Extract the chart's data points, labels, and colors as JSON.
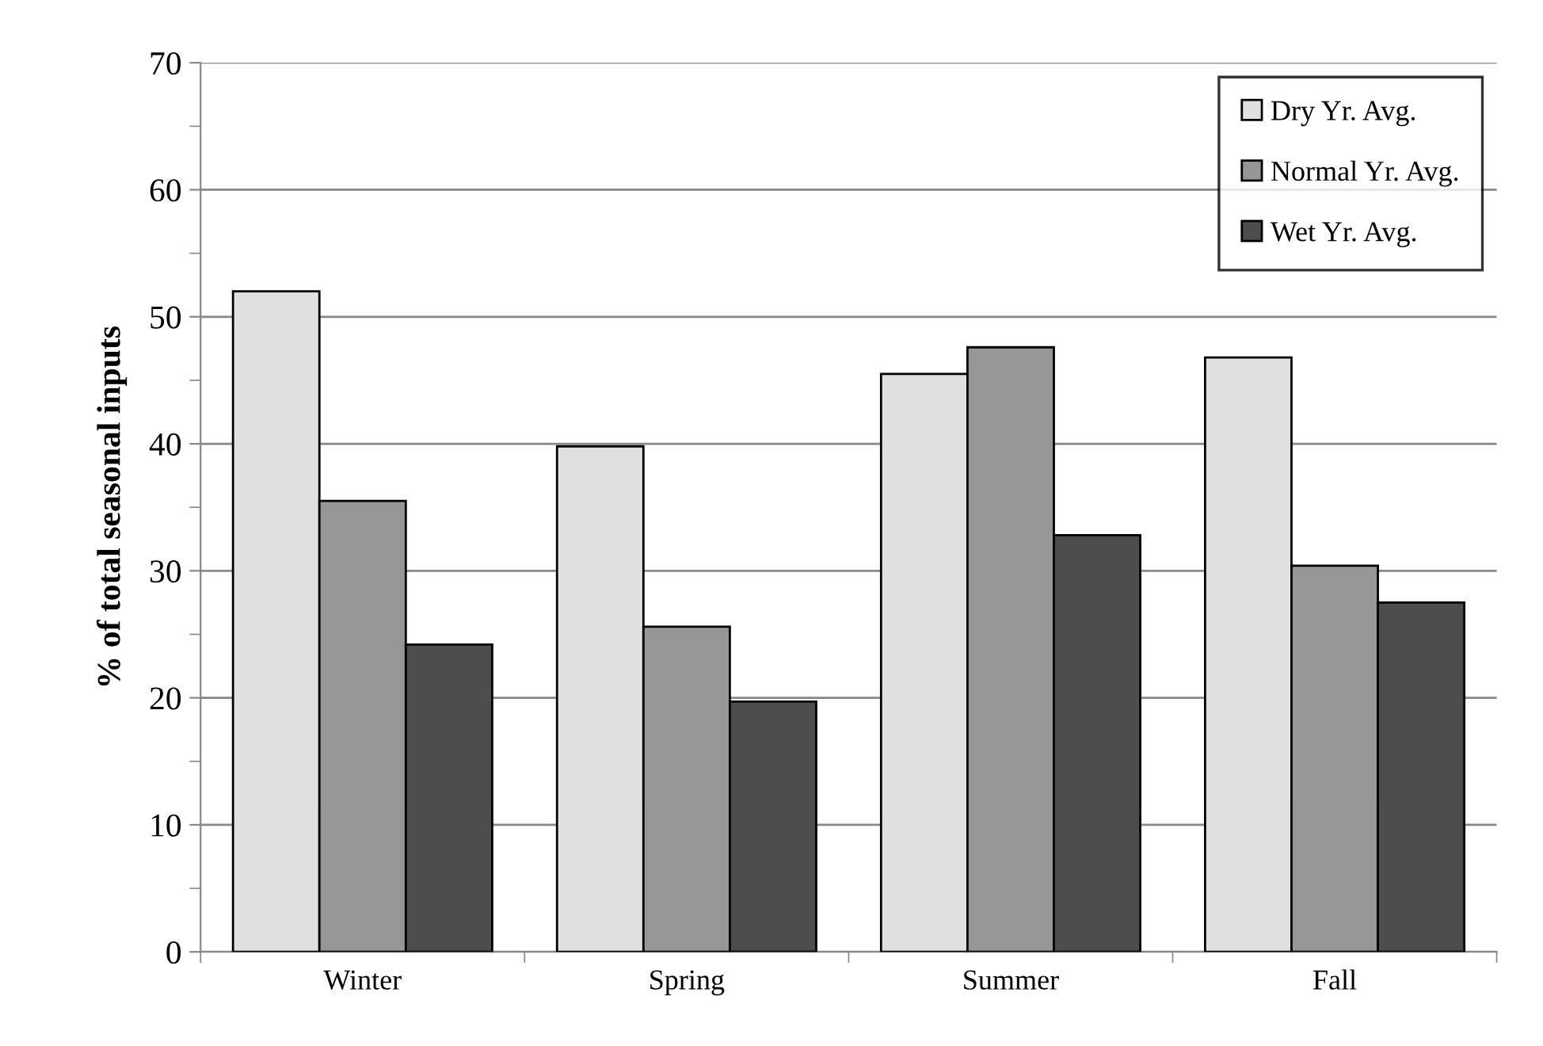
{
  "chart_data": {
    "type": "bar",
    "ylabel": "% of total seasonal inputs",
    "categories": [
      "Winter",
      "Spring",
      "Summer",
      "Fall"
    ],
    "series": [
      {
        "name": "Dry Yr. Avg.",
        "color": "#e0e0e0",
        "values": [
          52.0,
          39.8,
          45.5,
          46.8
        ]
      },
      {
        "name": "Normal Yr. Avg.",
        "color": "#969696",
        "values": [
          35.5,
          25.6,
          47.6,
          30.4
        ]
      },
      {
        "name": "Wet Yr. Avg.",
        "color": "#4d4d4d",
        "values": [
          24.2,
          19.7,
          32.8,
          27.5
        ]
      }
    ],
    "ylim": [
      0,
      70
    ],
    "yticks": [
      0,
      {
        "value": 5,
        "label": null
      },
      10,
      {
        "value": 15,
        "label": null
      },
      20,
      {
        "value": 25,
        "label": null
      },
      30,
      {
        "value": 35,
        "label": null
      },
      40,
      {
        "value": 45,
        "label": null
      },
      50,
      {
        "value": 55,
        "label": null
      },
      60,
      {
        "value": 65,
        "label": null
      },
      70
    ],
    "grid": "y",
    "legend": "top right"
  }
}
